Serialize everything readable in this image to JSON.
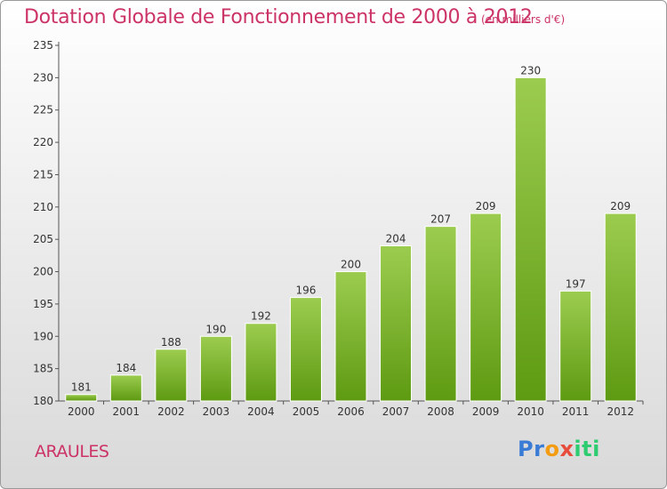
{
  "header": {
    "title": "Dotation Globale de Fonctionnement de 2000 à 2012",
    "unit": "(en milliers d'€)"
  },
  "footer": {
    "commune": "ARAULES",
    "logo": "Proxiti"
  },
  "colors": {
    "title": "#cc3366",
    "bar_light": "#9ccc4f",
    "bar_dark": "#5e9a12"
  },
  "chart_data": {
    "type": "bar",
    "title": "Dotation Globale de Fonctionnement de 2000 à 2012",
    "categories": [
      "2000",
      "2001",
      "2002",
      "2003",
      "2004",
      "2005",
      "2006",
      "2007",
      "2008",
      "2009",
      "2010",
      "2011",
      "2012"
    ],
    "values": [
      181,
      184,
      188,
      190,
      192,
      196,
      200,
      204,
      207,
      209,
      230,
      197,
      209
    ],
    "ylim": [
      180,
      235
    ],
    "yticks": [
      180,
      185,
      190,
      195,
      200,
      205,
      210,
      215,
      220,
      225,
      230,
      235
    ],
    "grid": false
  }
}
